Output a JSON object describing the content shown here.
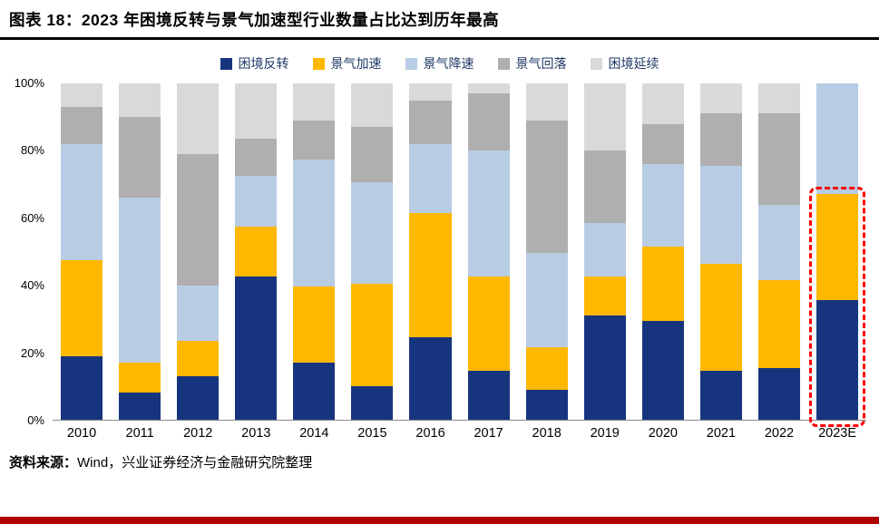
{
  "header": {
    "title": "图表 18：2023 年困境反转与景气加速型行业数量占比达到历年最高"
  },
  "source": {
    "label": "资料来源：",
    "text": "Wind，兴业证券经济与金融研究院整理"
  },
  "colors": {
    "title_rule": "#000000",
    "footer_accent_bar": "#B00000",
    "highlight_box": "#FF0000",
    "legend_text": "#1F3864"
  },
  "chart_data": {
    "type": "bar",
    "stacked": true,
    "unit": "%",
    "title": "2023 年困境反转与景气加速型行业数量占比达到历年最高",
    "xlabel": "",
    "ylabel": "",
    "ylim": [
      0,
      100
    ],
    "grid": false,
    "legend_position": "top",
    "y_ticks": [
      "0%",
      "20%",
      "40%",
      "60%",
      "80%",
      "100%"
    ],
    "categories": [
      "2010",
      "2011",
      "2012",
      "2013",
      "2014",
      "2015",
      "2016",
      "2017",
      "2018",
      "2019",
      "2020",
      "2021",
      "2022",
      "2023E"
    ],
    "series": [
      {
        "name": "困境反转",
        "color": "#17357F",
        "values": [
          19,
          8,
          13,
          42.5,
          17,
          10,
          24.5,
          14.5,
          9,
          31,
          29.5,
          14.5,
          15.5,
          35.5
        ]
      },
      {
        "name": "景气加速",
        "color": "#FFB800",
        "values": [
          28.5,
          9,
          10.5,
          15,
          22.5,
          30.5,
          37,
          28,
          12.5,
          11.5,
          22,
          32,
          26,
          31.5
        ]
      },
      {
        "name": "景气降速",
        "color": "#B8CCE4",
        "values": [
          34.5,
          49,
          16.5,
          15,
          38,
          30,
          20.5,
          37.5,
          28,
          16,
          24.5,
          29,
          22.5,
          33
        ]
      },
      {
        "name": "景气回落",
        "color": "#AFAFAF",
        "values": [
          11,
          24,
          39,
          11,
          11.5,
          16.5,
          13,
          17,
          39.5,
          21.5,
          12,
          15.5,
          27,
          0
        ]
      },
      {
        "name": "困境延续",
        "color": "#D9D9D9",
        "values": [
          7,
          10,
          21,
          16.5,
          11,
          13,
          5,
          3,
          11,
          20,
          12,
          9,
          9,
          0
        ]
      }
    ],
    "highlight": {
      "category": "2023E",
      "segments": [
        "困境反转",
        "景气加速"
      ],
      "color": "#FF0000",
      "style": "dashed-box"
    }
  }
}
